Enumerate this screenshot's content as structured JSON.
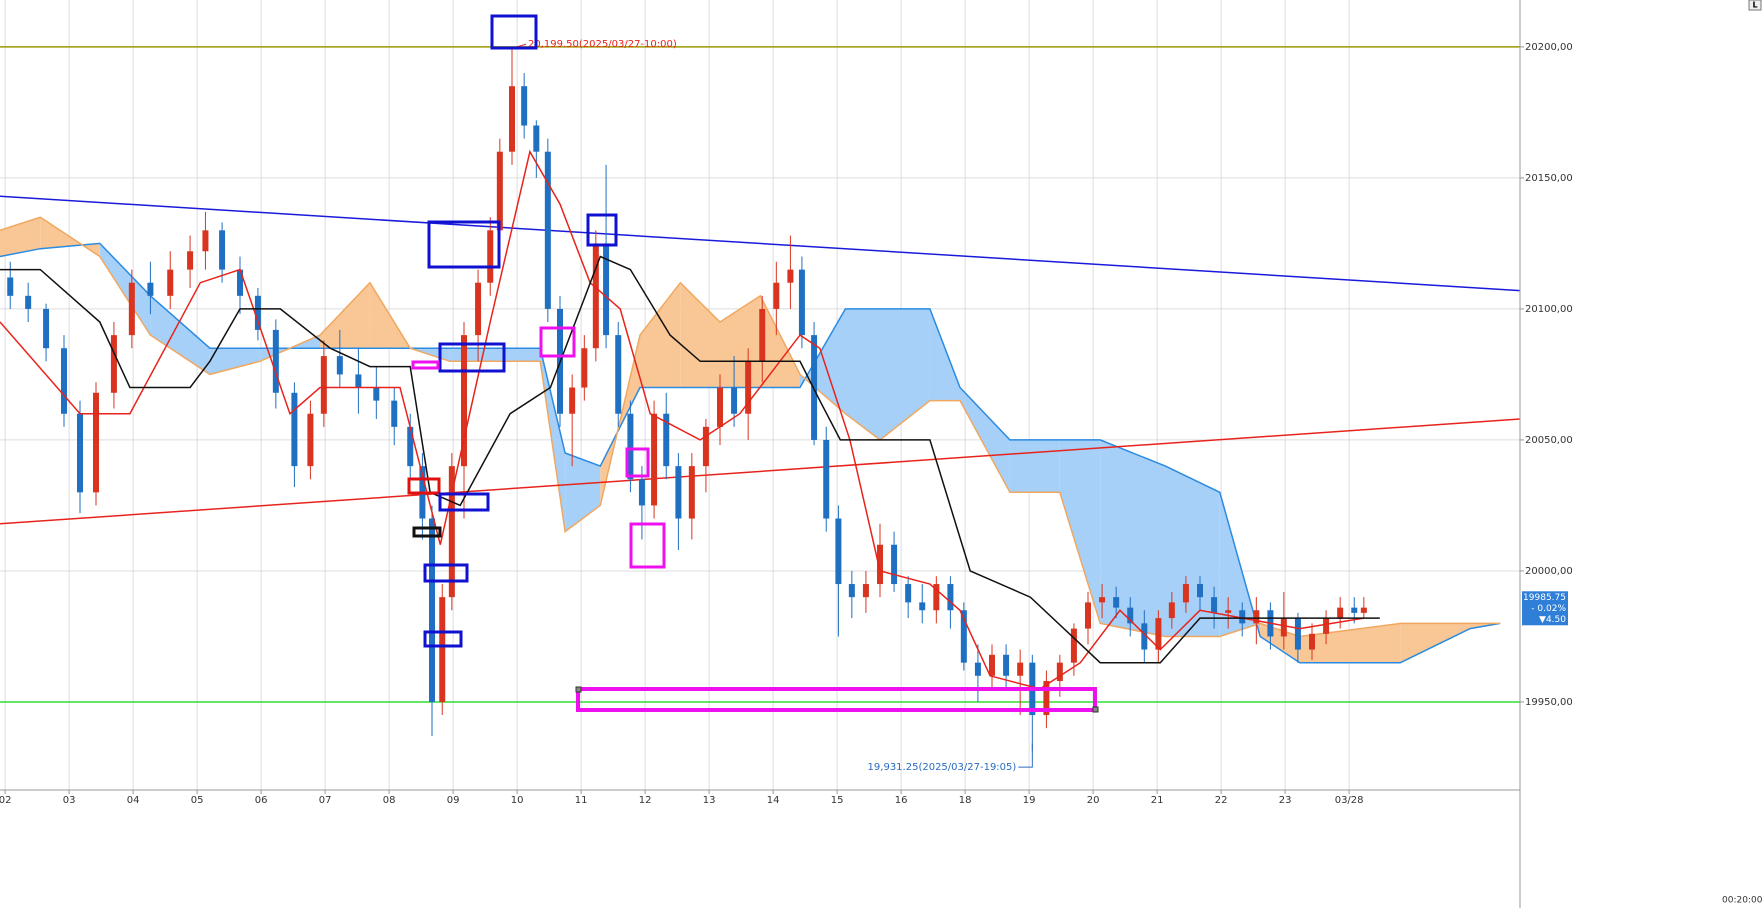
{
  "chart_data": {
    "type": "candlestick",
    "xlim": [
      -0.08,
      23.67
    ],
    "ylim": [
      19916.4,
      20217.9
    ],
    "grid": true,
    "xticks": [
      {
        "value": 0,
        "label": "02"
      },
      {
        "value": 1,
        "label": "03"
      },
      {
        "value": 2,
        "label": "04"
      },
      {
        "value": 3,
        "label": "05"
      },
      {
        "value": 4,
        "label": "06"
      },
      {
        "value": 5,
        "label": "07"
      },
      {
        "value": 6,
        "label": "08"
      },
      {
        "value": 7,
        "label": "09"
      },
      {
        "value": 8,
        "label": "10"
      },
      {
        "value": 9,
        "label": "11"
      },
      {
        "value": 10,
        "label": "12"
      },
      {
        "value": 11,
        "label": "13"
      },
      {
        "value": 12,
        "label": "14"
      },
      {
        "value": 13,
        "label": "15"
      },
      {
        "value": 14,
        "label": "16"
      },
      {
        "value": 15,
        "label": "18"
      },
      {
        "value": 16,
        "label": "19"
      },
      {
        "value": 17,
        "label": "20"
      },
      {
        "value": 18,
        "label": "21"
      },
      {
        "value": 19,
        "label": "22"
      },
      {
        "value": 20,
        "label": "23"
      },
      {
        "value": 21,
        "label": "03/28"
      }
    ],
    "yticks": [
      {
        "value": 19950,
        "label": "19950,00"
      },
      {
        "value": 20000,
        "label": "20000,00"
      },
      {
        "value": 20050,
        "label": "20050,00"
      },
      {
        "value": 20100,
        "label": "20100,00"
      },
      {
        "value": 20150,
        "label": "20150,00"
      },
      {
        "value": 20200,
        "label": "20200,00"
      }
    ],
    "time_label": "00:20:00",
    "corner_label": "L",
    "candles": {
      "up_color": "#d8341f",
      "down_color": "#1f6fc2",
      "x": [
        0.08,
        0.36,
        0.64,
        0.92,
        1.17,
        1.42,
        1.7,
        1.98,
        2.27,
        2.58,
        2.89,
        3.13,
        3.39,
        3.67,
        3.95,
        4.23,
        4.52,
        4.77,
        4.98,
        5.23,
        5.52,
        5.8,
        6.08,
        6.33,
        6.52,
        6.67,
        6.83,
        6.98,
        7.17,
        7.39,
        7.58,
        7.73,
        7.92,
        8.11,
        8.3,
        8.48,
        8.67,
        8.86,
        9.05,
        9.23,
        9.39,
        9.58,
        9.77,
        9.95,
        10.14,
        10.33,
        10.52,
        10.73,
        10.95,
        11.17,
        11.39,
        11.61,
        11.83,
        12.05,
        12.27,
        12.45,
        12.64,
        12.83,
        13.02,
        13.23,
        13.45,
        13.67,
        13.89,
        14.11,
        14.33,
        14.55,
        14.77,
        14.98,
        15.2,
        15.42,
        15.64,
        15.86,
        16.05,
        16.27,
        16.48,
        16.7,
        16.92,
        17.14,
        17.36,
        17.58,
        17.8,
        18.02,
        18.23,
        18.45,
        18.67,
        18.89,
        19.11,
        19.33,
        19.55,
        19.77,
        19.98,
        20.2,
        20.42,
        20.64,
        20.86,
        21.08,
        21.23
      ],
      "open": [
        20112,
        20105,
        20100,
        20085,
        20060,
        20030,
        20068,
        20090,
        20110,
        20105,
        20115,
        20122,
        20130,
        20115,
        20105,
        20092,
        20068,
        20040,
        20060,
        20082,
        20075,
        20070,
        20065,
        20055,
        20040,
        20020,
        19950,
        19990,
        20040,
        20090,
        20110,
        20130,
        20160,
        20185,
        20170,
        20160,
        20100,
        20060,
        20070,
        20085,
        20125,
        20090,
        20060,
        20035,
        20025,
        20060,
        20040,
        20020,
        20040,
        20055,
        20070,
        20060,
        20080,
        20100,
        20110,
        20115,
        20090,
        20050,
        20020,
        19995,
        19990,
        19995,
        20010,
        19995,
        19988,
        19985,
        19995,
        19985,
        19965,
        19960,
        19968,
        19960,
        19965,
        19945,
        19958,
        19965,
        19978,
        19988,
        19990,
        19986,
        19980,
        19970,
        19982,
        19988,
        19995,
        19990,
        19984,
        19985,
        19980,
        19985,
        19975,
        19982,
        19970,
        19976,
        19982,
        19986,
        19984
      ],
      "high": [
        20118,
        20110,
        20102,
        20090,
        20065,
        20072,
        20095,
        20115,
        20118,
        20122,
        20128,
        20137,
        20133,
        20120,
        20108,
        20096,
        20072,
        20065,
        20088,
        20092,
        20085,
        20078,
        20070,
        20060,
        20045,
        20025,
        19995,
        20045,
        20095,
        20115,
        20135,
        20165,
        20199.5,
        20190,
        20172,
        20165,
        20105,
        20075,
        20090,
        20130,
        20155,
        20095,
        20065,
        20040,
        20065,
        20068,
        20045,
        20045,
        20058,
        20075,
        20082,
        20085,
        20105,
        20118,
        20128,
        20120,
        20095,
        20055,
        20025,
        20000,
        20000,
        20018,
        20015,
        19998,
        19995,
        19998,
        19998,
        19988,
        19972,
        19972,
        19972,
        19970,
        19968,
        19962,
        19968,
        19980,
        19992,
        19995,
        19994,
        19990,
        19985,
        19985,
        19992,
        19998,
        19998,
        19994,
        19990,
        19988,
        19990,
        19988,
        19992,
        19984,
        19980,
        19985,
        19990,
        19990,
        19990
      ],
      "low": [
        20100,
        20095,
        20080,
        20055,
        20022,
        20025,
        20062,
        20085,
        20098,
        20100,
        20108,
        20115,
        20110,
        20098,
        20088,
        20062,
        20032,
        20035,
        20055,
        20070,
        20060,
        20058,
        20048,
        20035,
        20012,
        19937,
        19945,
        19985,
        20020,
        20080,
        20105,
        20125,
        20155,
        20165,
        20150,
        20095,
        20055,
        20040,
        20065,
        20080,
        20085,
        20055,
        20030,
        20012,
        20020,
        20035,
        20008,
        20012,
        20030,
        20048,
        20055,
        20050,
        20072,
        20090,
        20100,
        20085,
        20048,
        20015,
        19975,
        19982,
        19984,
        19990,
        19992,
        19982,
        19980,
        19980,
        19978,
        19962,
        19950,
        19955,
        19955,
        19945,
        19931.25,
        19940,
        19952,
        19960,
        19972,
        19982,
        19982,
        19975,
        19965,
        19965,
        19978,
        19984,
        19985,
        19978,
        19978,
        19975,
        19972,
        19970,
        19970,
        19965,
        19966,
        19972,
        19978,
        19980,
        19982
      ],
      "close": [
        20105,
        20100,
        20085,
        20060,
        20030,
        20068,
        20090,
        20110,
        20105,
        20115,
        20122,
        20130,
        20115,
        20105,
        20092,
        20068,
        20040,
        20060,
        20082,
        20075,
        20070,
        20065,
        20055,
        20040,
        20020,
        19950,
        19990,
        20040,
        20090,
        20110,
        20130,
        20160,
        20185,
        20170,
        20160,
        20100,
        20060,
        20070,
        20085,
        20125,
        20090,
        20060,
        20035,
        20025,
        20060,
        20040,
        20020,
        20040,
        20055,
        20070,
        20060,
        20080,
        20100,
        20110,
        20115,
        20090,
        20050,
        20020,
        19995,
        19990,
        19995,
        20010,
        19995,
        19988,
        19985,
        19995,
        19985,
        19965,
        19960,
        19968,
        19960,
        19965,
        19945,
        19958,
        19965,
        19978,
        19988,
        19990,
        19986,
        19980,
        19970,
        19982,
        19988,
        19995,
        19990,
        19984,
        19985,
        19980,
        19985,
        19975,
        19982,
        19970,
        19976,
        19982,
        19986,
        19984,
        19986
      ]
    },
    "cloud": {
      "color_a": "#2b8be0",
      "color_b": "#f0a860",
      "fill_a": "#a6d0f8",
      "fill_b": "#f9c795",
      "x": [
        -0.08,
        0.55,
        1.48,
        2.27,
        3.2,
        3.98,
        4.92,
        5.7,
        6.33,
        6.95,
        8.36,
        8.75,
        9.3,
        9.92,
        10.55,
        11.17,
        11.8,
        12.42,
        13.13,
        13.67,
        14.45,
        14.92,
        15.7,
        16.48,
        17.11,
        18.13,
        18.98,
        19.61,
        20.23,
        21.8,
        22.89,
        23.36
      ],
      "span_a": [
        20120,
        20123,
        20125,
        20105,
        20085,
        20085,
        20085,
        20085,
        20085,
        20085,
        20085,
        20045,
        20040,
        20070,
        20070,
        20070,
        20070,
        20070,
        20100,
        20100,
        20100,
        20070,
        20050,
        20050,
        20050,
        20040,
        20030,
        19975,
        19965,
        19965,
        19978,
        19980
      ],
      "span_b": [
        20130,
        20135,
        20120,
        20090,
        20075,
        20080,
        20090,
        20110,
        20085,
        20080,
        20080,
        20015,
        20025,
        20090,
        20110,
        20095,
        20105,
        20075,
        20060,
        20050,
        20065,
        20065,
        20030,
        20030,
        19980,
        19975,
        19975,
        19980,
        19975,
        19980,
        19980,
        19980
      ]
    },
    "series": [
      {
        "color": "#e8231c",
        "x": [
          -0.08,
          1.17,
          1.95,
          3.05,
          3.67,
          4.45,
          4.92,
          6.17,
          6.8,
          7.58,
          8.2,
          8.67,
          9.14,
          9.61,
          10.08,
          10.86,
          11.48,
          12.42,
          12.73,
          13.2,
          13.67,
          14.45,
          14.92,
          15.39,
          16.17,
          16.8,
          17.42,
          18.05,
          18.67,
          20.23,
          21.23
        ],
        "values": [
          20095,
          20060,
          20060,
          20110,
          20115,
          20060,
          20070,
          20070,
          20010,
          20095,
          20160,
          20140,
          20110,
          20100,
          20060,
          20050,
          20060,
          20090,
          20085,
          20050,
          20000,
          19995,
          19985,
          19960,
          19955,
          19965,
          19985,
          19970,
          19985,
          19978,
          19982
        ]
      },
      {
        "color": "#111111",
        "x": [
          -0.08,
          0.55,
          1.48,
          1.95,
          2.89,
          3.2,
          3.67,
          4.3,
          5.08,
          5.7,
          6.33,
          6.64,
          7.11,
          7.89,
          8.52,
          9.3,
          9.77,
          10.39,
          10.86,
          12.42,
          12.73,
          13.05,
          14.45,
          15.08,
          16.02,
          17.11,
          18.05,
          18.67,
          21.48
        ],
        "values": [
          20115,
          20115,
          20095,
          20070,
          20070,
          20080,
          20100,
          20100,
          20085,
          20078,
          20078,
          20030,
          20025,
          20060,
          20070,
          20120,
          20115,
          20090,
          20080,
          20080,
          20065,
          20050,
          20050,
          20000,
          19990,
          19965,
          19965,
          19982,
          19982
        ]
      }
    ],
    "trendlines": [
      {
        "color": "#1a1adc",
        "x": [
          -0.08,
          23.67
        ],
        "values": [
          20143,
          20107
        ]
      },
      {
        "color": "#e8231c",
        "x": [
          -0.08,
          23.67
        ],
        "values": [
          20018,
          20058
        ]
      }
    ],
    "hlines": [
      {
        "value": 20200,
        "color": "#9a9a00"
      },
      {
        "value": 19950,
        "color": "#33dd33"
      }
    ],
    "annotations": [
      {
        "text": "20,199.50(2025/03/27-10:00)",
        "x": 7.92,
        "y": 20199.5,
        "color": "#e8231c"
      },
      {
        "text": "19,931.25(2025/03/27-19:05)",
        "x": 16.05,
        "y": 19931.25,
        "color": "#2a6cc0"
      }
    ],
    "last_price": {
      "value": 19985.75,
      "label": "19985.75",
      "change_pct": "- 0.02%",
      "change": "▼4.50"
    }
  }
}
